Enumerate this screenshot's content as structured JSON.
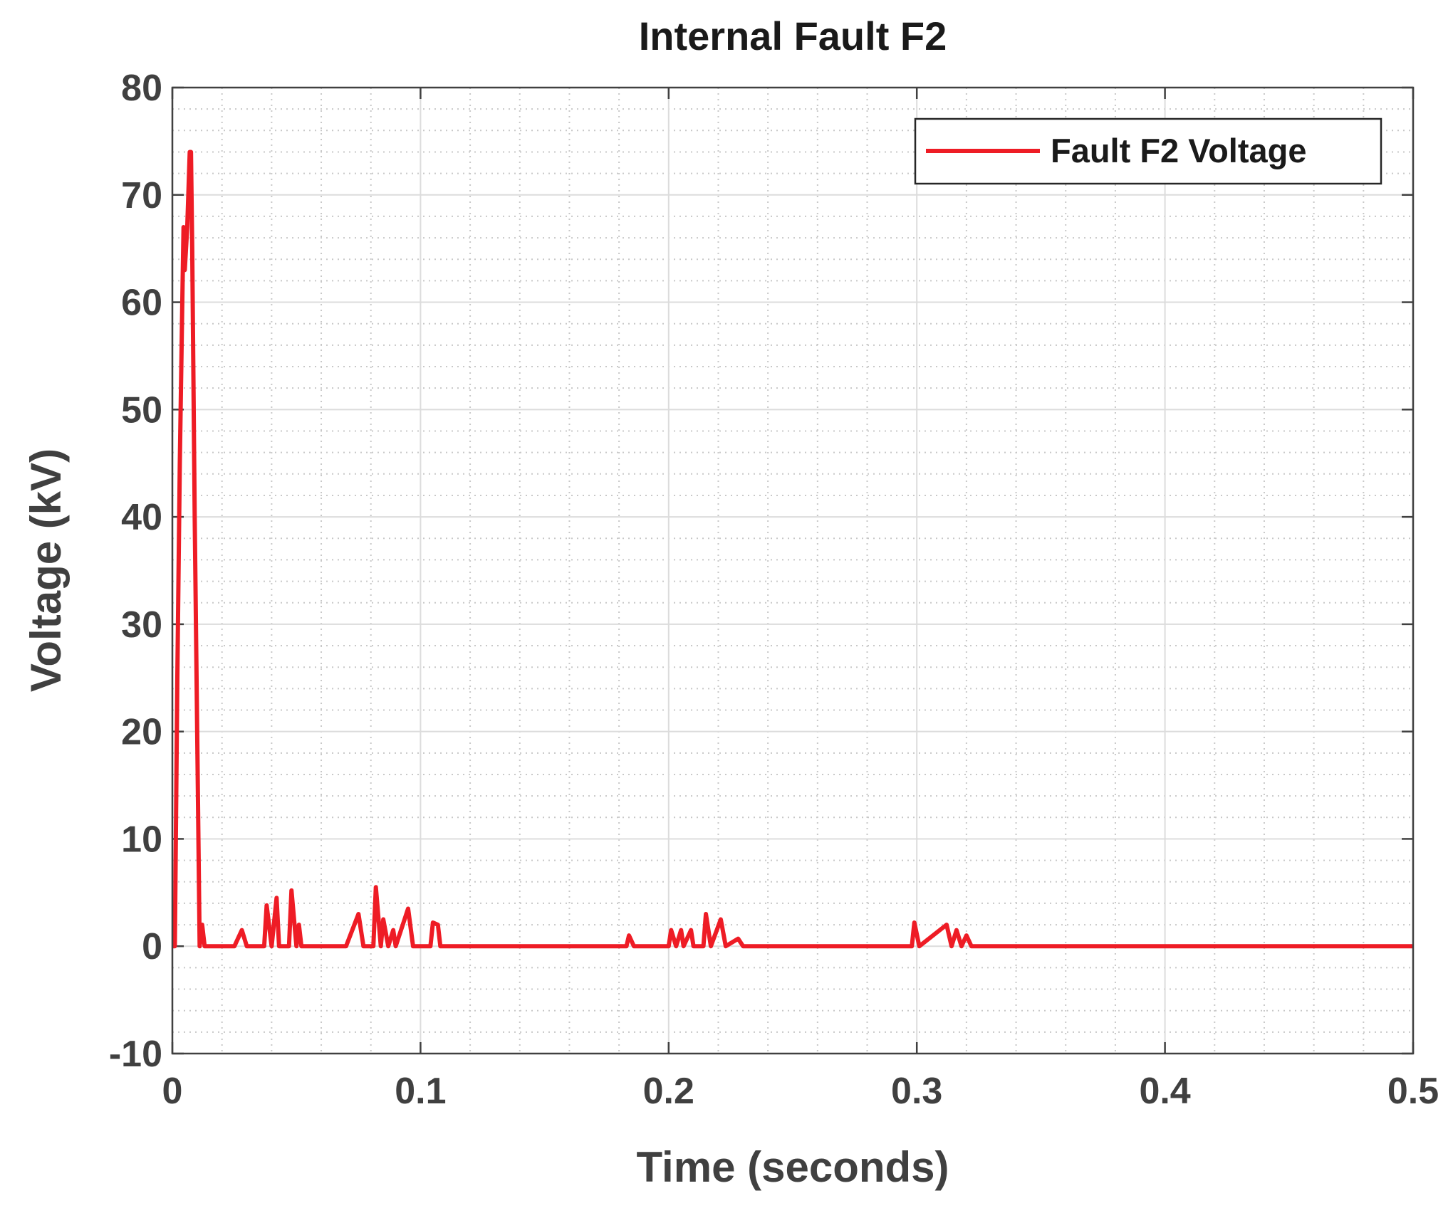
{
  "chart_data": {
    "type": "line",
    "title": "Internal Fault F2",
    "x_label": "Time (seconds)",
    "y_label": "Voltage (kV)",
    "xlim": [
      0,
      0.5
    ],
    "xticks": [
      0,
      0.1,
      0.2,
      0.3,
      0.4,
      0.5
    ],
    "ylim": [
      -10,
      80
    ],
    "yticks": [
      -10,
      0,
      10,
      20,
      30,
      40,
      50,
      60,
      70,
      80
    ],
    "grid": true,
    "legend": "upper right",
    "series": [
      {
        "name": "Fault F2 Voltage",
        "color": "#ee1c25",
        "x": [
          0,
          0.001,
          0.002,
          0.003,
          0.004,
          0.0045,
          0.005,
          0.006,
          0.007,
          0.0075,
          0.008,
          0.009,
          0.0105,
          0.011,
          0.012,
          0.013,
          0.025,
          0.028,
          0.03,
          0.037,
          0.038,
          0.04,
          0.042,
          0.043,
          0.047,
          0.048,
          0.05,
          0.051,
          0.052,
          0.07,
          0.075,
          0.077,
          0.081,
          0.082,
          0.084,
          0.085,
          0.087,
          0.089,
          0.09,
          0.095,
          0.097,
          0.104,
          0.105,
          0.107,
          0.108,
          0.183,
          0.184,
          0.186,
          0.2,
          0.201,
          0.203,
          0.205,
          0.206,
          0.209,
          0.21,
          0.214,
          0.215,
          0.217,
          0.221,
          0.223,
          0.228,
          0.23,
          0.298,
          0.299,
          0.301,
          0.312,
          0.314,
          0.316,
          0.318,
          0.32,
          0.322,
          0.5
        ],
        "values": [
          0,
          0,
          25,
          45,
          60,
          67,
          63,
          67,
          74,
          74,
          65,
          40,
          10,
          0,
          2,
          0,
          0,
          1.5,
          0,
          0,
          3.8,
          0,
          4.5,
          0,
          0,
          5.2,
          0,
          2,
          0,
          0,
          3,
          0,
          0,
          5.5,
          0,
          2.5,
          0,
          1.5,
          0,
          3.5,
          0,
          0,
          2.2,
          2,
          0,
          0,
          1,
          0,
          0,
          1.5,
          0,
          1.5,
          0,
          1.5,
          0,
          0,
          3,
          0,
          2.5,
          0,
          0.7,
          0,
          0,
          2.2,
          0,
          2,
          0,
          1.5,
          0,
          1,
          0,
          0
        ]
      }
    ]
  }
}
